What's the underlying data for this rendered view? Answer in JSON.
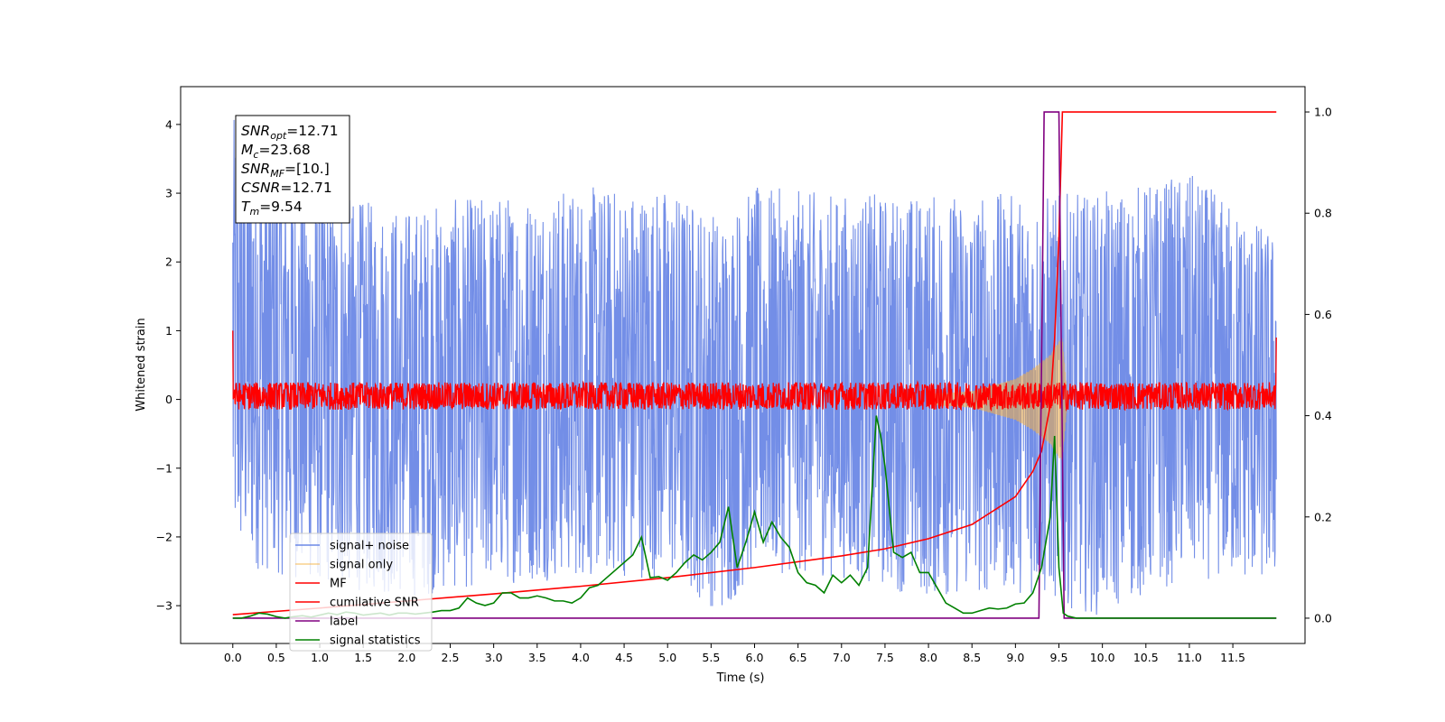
{
  "chart_data": {
    "type": "line",
    "title": "",
    "xlabel": "Time (s)",
    "ylabel": "Whitened strain",
    "xlim": [
      -0.6,
      12.33
    ],
    "ylim": [
      -3.55,
      4.55
    ],
    "y2lim": [
      -0.05,
      1.05
    ],
    "x_ticks": [
      0.0,
      0.5,
      1.0,
      1.5,
      2.0,
      2.5,
      3.0,
      3.5,
      4.0,
      4.5,
      5.0,
      5.5,
      6.0,
      6.5,
      7.0,
      7.5,
      8.0,
      8.5,
      9.0,
      9.5,
      10.0,
      10.5,
      11.0,
      11.5
    ],
    "x_tick_labels": [
      "0.0",
      "0.5",
      "1.0",
      "1.5",
      "2.0",
      "2.5",
      "3.0",
      "3.5",
      "4.0",
      "4.5",
      "5.0",
      "5.5",
      "6.0",
      "6.5",
      "7.0",
      "7.5",
      "8.0",
      "8.5",
      "9.0",
      "9.5",
      "10.0",
      "10.5",
      "11.0",
      "11.5"
    ],
    "y_ticks": [
      -3,
      -2,
      -1,
      0,
      1,
      2,
      3,
      4
    ],
    "y_tick_labels": [
      "−3",
      "−2",
      "−1",
      "0",
      "1",
      "2",
      "3",
      "4"
    ],
    "y2_ticks": [
      0.0,
      0.2,
      0.4,
      0.6,
      0.8,
      1.0
    ],
    "y2_tick_labels": [
      "0.0",
      "0.2",
      "0.4",
      "0.6",
      "0.8",
      "1.0"
    ],
    "grid": false,
    "legend_position": "lower-left",
    "annotation": {
      "lines": [
        {
          "base": "SNR",
          "sub": "opt",
          "value": "=12.71"
        },
        {
          "base": "M",
          "sub": "c",
          "value": "=23.68"
        },
        {
          "base": "SNR",
          "sub": "MF",
          "value": "=[10.]"
        },
        {
          "base": "CSNR",
          "sub": "",
          "value": "=12.71"
        },
        {
          "base": "T",
          "sub": "m",
          "value": "=9.54"
        }
      ]
    },
    "series": [
      {
        "name": "signal+ noise",
        "axis": "left",
        "color": "#6b88e6",
        "kind": "noise-band",
        "x_range": [
          0.0,
          12.0
        ],
        "amplitude_envelope": [
          {
            "x": 0.0,
            "upper": 4.1,
            "lower": -2.4
          },
          {
            "x": 1.0,
            "upper": 3.0,
            "lower": -2.7
          },
          {
            "x": 2.0,
            "upper": 2.8,
            "lower": -2.9
          },
          {
            "x": 3.0,
            "upper": 3.0,
            "lower": -2.7
          },
          {
            "x": 4.0,
            "upper": 3.1,
            "lower": -2.6
          },
          {
            "x": 5.0,
            "upper": 3.1,
            "lower": -2.6
          },
          {
            "x": 5.65,
            "upper": 2.7,
            "lower": -3.15
          },
          {
            "x": 6.0,
            "upper": 3.1,
            "lower": -2.5
          },
          {
            "x": 7.0,
            "upper": 3.0,
            "lower": -2.6
          },
          {
            "x": 8.0,
            "upper": 3.0,
            "lower": -2.9
          },
          {
            "x": 9.0,
            "upper": 3.0,
            "lower": -2.8
          },
          {
            "x": 9.95,
            "upper": 3.0,
            "lower": -3.15
          },
          {
            "x": 11.0,
            "upper": 3.3,
            "lower": -2.6
          },
          {
            "x": 12.0,
            "upper": 2.4,
            "lower": -2.7
          }
        ]
      },
      {
        "name": "signal only",
        "axis": "left",
        "color": "#f5b041",
        "kind": "chirp",
        "x": [
          0.0,
          8.0,
          8.5,
          9.0,
          9.2,
          9.4,
          9.5,
          9.54,
          9.6,
          12.0
        ],
        "envelope": [
          0.04,
          0.08,
          0.12,
          0.3,
          0.45,
          0.65,
          0.85,
          0.9,
          0.0,
          0.0
        ]
      },
      {
        "name": "MF",
        "axis": "left",
        "color": "#ff0000",
        "kind": "noise-band",
        "x_range": [
          0.0,
          12.0
        ],
        "amplitude_envelope": [
          {
            "x": 0.0,
            "upper": 0.25,
            "lower": -0.15
          },
          {
            "x": 12.0,
            "upper": 0.25,
            "lower": -0.15
          }
        ],
        "edge_spikes": [
          {
            "x": 0.0,
            "y": 1.0
          },
          {
            "x": 12.0,
            "y": 0.9
          }
        ]
      },
      {
        "name": "cumilative SNR",
        "axis": "right",
        "color": "#ff0000",
        "x": [
          0.0,
          1.0,
          2.0,
          3.0,
          4.0,
          5.0,
          6.0,
          7.0,
          7.5,
          8.0,
          8.5,
          9.0,
          9.2,
          9.3,
          9.4,
          9.45,
          9.5,
          9.54,
          9.6,
          12.0
        ],
        "values": [
          0.007,
          0.02,
          0.034,
          0.048,
          0.063,
          0.08,
          0.1,
          0.123,
          0.137,
          0.157,
          0.185,
          0.24,
          0.29,
          0.33,
          0.42,
          0.55,
          0.75,
          1.0,
          1.0,
          1.0
        ]
      },
      {
        "name": "label",
        "axis": "right",
        "color": "#800080",
        "x": [
          0.0,
          9.27,
          9.33,
          9.5,
          9.56,
          12.0
        ],
        "values": [
          0.0,
          0.0,
          1.0,
          1.0,
          0.0,
          0.0
        ]
      },
      {
        "name": "signal statistics",
        "axis": "right",
        "color": "#008000",
        "x": [
          0.0,
          0.1,
          0.2,
          0.3,
          0.4,
          0.5,
          0.6,
          0.7,
          0.8,
          0.9,
          1.0,
          1.1,
          1.2,
          1.3,
          1.4,
          1.5,
          1.6,
          1.7,
          1.8,
          1.9,
          2.0,
          2.1,
          2.2,
          2.3,
          2.4,
          2.5,
          2.6,
          2.7,
          2.8,
          2.9,
          3.0,
          3.1,
          3.2,
          3.3,
          3.4,
          3.5,
          3.6,
          3.7,
          3.8,
          3.9,
          4.0,
          4.1,
          4.2,
          4.3,
          4.4,
          4.5,
          4.6,
          4.7,
          4.8,
          4.9,
          5.0,
          5.1,
          5.2,
          5.3,
          5.4,
          5.5,
          5.6,
          5.7,
          5.8,
          5.9,
          6.0,
          6.1,
          6.2,
          6.3,
          6.4,
          6.5,
          6.6,
          6.7,
          6.8,
          6.9,
          7.0,
          7.1,
          7.2,
          7.3,
          7.4,
          7.45,
          7.5,
          7.6,
          7.7,
          7.8,
          7.9,
          8.0,
          8.1,
          8.2,
          8.3,
          8.4,
          8.5,
          8.6,
          8.7,
          8.8,
          8.9,
          9.0,
          9.1,
          9.2,
          9.3,
          9.4,
          9.45,
          9.5,
          9.55,
          9.6,
          9.7,
          9.8,
          10.0,
          11.0,
          12.0
        ],
        "values": [
          0.0,
          0.0,
          0.004,
          0.01,
          0.008,
          0.003,
          0.0,
          0.003,
          0.005,
          0.002,
          0.006,
          0.01,
          0.007,
          0.012,
          0.01,
          0.006,
          0.008,
          0.01,
          0.006,
          0.01,
          0.01,
          0.008,
          0.01,
          0.012,
          0.015,
          0.015,
          0.02,
          0.04,
          0.03,
          0.025,
          0.03,
          0.05,
          0.05,
          0.04,
          0.04,
          0.044,
          0.04,
          0.034,
          0.034,
          0.03,
          0.04,
          0.06,
          0.065,
          0.08,
          0.095,
          0.11,
          0.125,
          0.16,
          0.08,
          0.082,
          0.075,
          0.09,
          0.11,
          0.125,
          0.115,
          0.13,
          0.15,
          0.22,
          0.1,
          0.15,
          0.21,
          0.15,
          0.19,
          0.16,
          0.14,
          0.09,
          0.07,
          0.065,
          0.05,
          0.085,
          0.07,
          0.085,
          0.065,
          0.1,
          0.4,
          0.36,
          0.3,
          0.13,
          0.12,
          0.13,
          0.09,
          0.09,
          0.06,
          0.03,
          0.02,
          0.01,
          0.01,
          0.015,
          0.02,
          0.018,
          0.02,
          0.028,
          0.03,
          0.05,
          0.1,
          0.2,
          0.36,
          0.1,
          0.01,
          0.004,
          0.0,
          0.0,
          0.0,
          0.0,
          0.0
        ]
      }
    ]
  }
}
